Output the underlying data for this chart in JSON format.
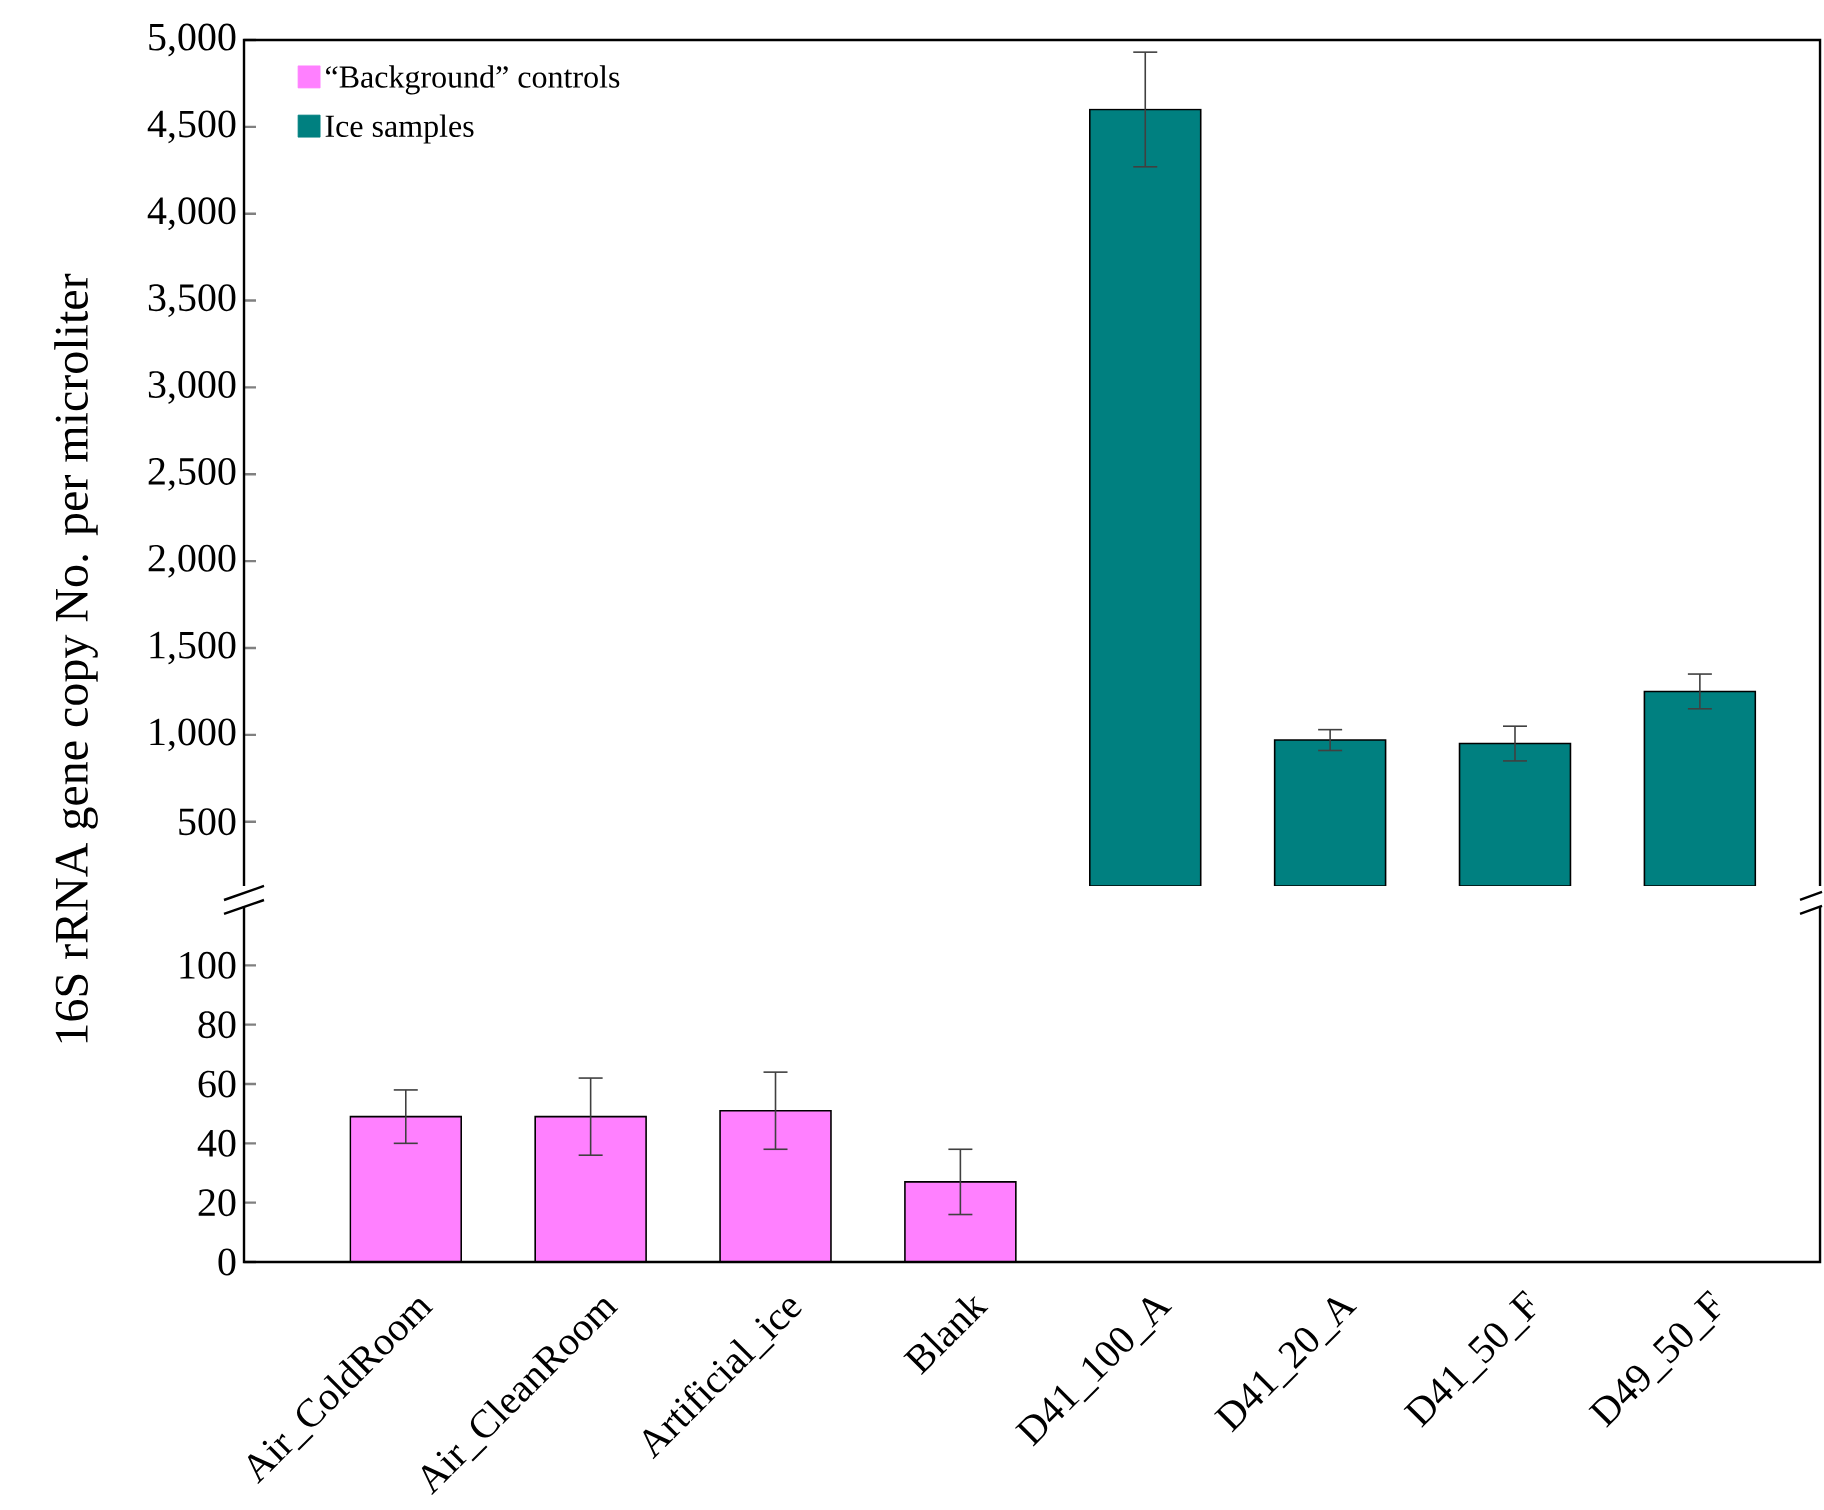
{
  "chart_data": [
    {
      "type": "bar",
      "ylabel": "16S rRNA gene copy No. per microliter",
      "categories": [
        null,
        null,
        null,
        null,
        null,
        null,
        null,
        null
      ],
      "series": [
        {
          "name": "“Background” controls",
          "color": "#ff80ff",
          "values": [
            null,
            null,
            null,
            null,
            null,
            null,
            null,
            null
          ]
        },
        {
          "name": "Ice samples",
          "color": "#008080",
          "values": [
            null,
            null,
            null,
            null,
            4600,
            970,
            950,
            1250
          ],
          "errors": [
            null,
            null,
            null,
            null,
            330,
            60,
            100,
            100
          ]
        }
      ],
      "ylim": [
        130,
        5000
      ],
      "yticks": [
        500,
        {
          "value": 1000,
          "label": "1,000"
        },
        {
          "value": 1500,
          "label": "1,500"
        },
        {
          "value": 2000,
          "label": "2,000"
        },
        {
          "value": 2500,
          "label": "2,500"
        },
        {
          "value": 3000,
          "label": "3,000"
        },
        {
          "value": 3500,
          "label": "3,500"
        },
        {
          "value": 4000,
          "label": "4,000"
        },
        {
          "value": 4500,
          "label": "4,500"
        },
        {
          "value": 5000,
          "label": "5,000"
        }
      ],
      "tick_labels": "y",
      "legend": "top left",
      "grid": false
    },
    {
      "type": "bar",
      "categories": [
        "Air_ColdRoom",
        "Air_CleanRoom",
        "Artificial_ice",
        "Blank",
        "D41_100_A",
        "D41_20_A",
        "D41_50_F",
        "D49_50_F"
      ],
      "series": [
        {
          "color": "#ff80ff",
          "values": [
            49,
            49,
            51,
            27,
            null,
            null,
            null,
            null
          ],
          "errors": [
            9,
            13,
            13,
            11,
            null,
            null,
            null,
            null
          ]
        },
        {
          "color": "#008080",
          "values": [
            null,
            null,
            null,
            null,
            null,
            null,
            null,
            null
          ]
        }
      ],
      "ylim": [
        0,
        120
      ],
      "yticks": [
        0,
        20,
        40,
        60,
        80,
        100
      ],
      "legend": false,
      "grid": false
    }
  ]
}
